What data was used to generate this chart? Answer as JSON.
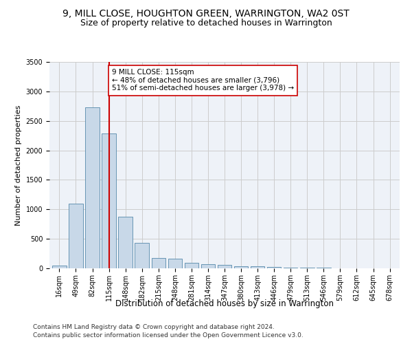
{
  "title": "9, MILL CLOSE, HOUGHTON GREEN, WARRINGTON, WA2 0ST",
  "subtitle": "Size of property relative to detached houses in Warrington",
  "xlabel": "Distribution of detached houses by size in Warrington",
  "ylabel": "Number of detached properties",
  "categories": [
    "16sqm",
    "49sqm",
    "82sqm",
    "115sqm",
    "148sqm",
    "182sqm",
    "215sqm",
    "248sqm",
    "281sqm",
    "314sqm",
    "347sqm",
    "380sqm",
    "413sqm",
    "446sqm",
    "479sqm",
    "513sqm",
    "546sqm",
    "579sqm",
    "612sqm",
    "645sqm",
    "678sqm"
  ],
  "values": [
    50,
    1100,
    2730,
    2290,
    880,
    430,
    175,
    160,
    90,
    65,
    55,
    40,
    30,
    20,
    15,
    10,
    8,
    5,
    3,
    2,
    1
  ],
  "bar_color": "#c8d8e8",
  "bar_edge_color": "#5588aa",
  "vline_x": 3,
  "vline_color": "#cc0000",
  "annotation_text": "9 MILL CLOSE: 115sqm\n← 48% of detached houses are smaller (3,796)\n51% of semi-detached houses are larger (3,978) →",
  "annotation_box_color": "#ffffff",
  "annotation_box_edge_color": "#cc0000",
  "ylim": [
    0,
    3500
  ],
  "yticks": [
    0,
    500,
    1000,
    1500,
    2000,
    2500,
    3000,
    3500
  ],
  "grid_color": "#cccccc",
  "background_color": "#eef2f8",
  "footer_line1": "Contains HM Land Registry data © Crown copyright and database right 2024.",
  "footer_line2": "Contains public sector information licensed under the Open Government Licence v3.0.",
  "title_fontsize": 10,
  "subtitle_fontsize": 9,
  "xlabel_fontsize": 8.5,
  "ylabel_fontsize": 8,
  "tick_fontsize": 7,
  "annotation_fontsize": 7.5,
  "footer_fontsize": 6.5
}
